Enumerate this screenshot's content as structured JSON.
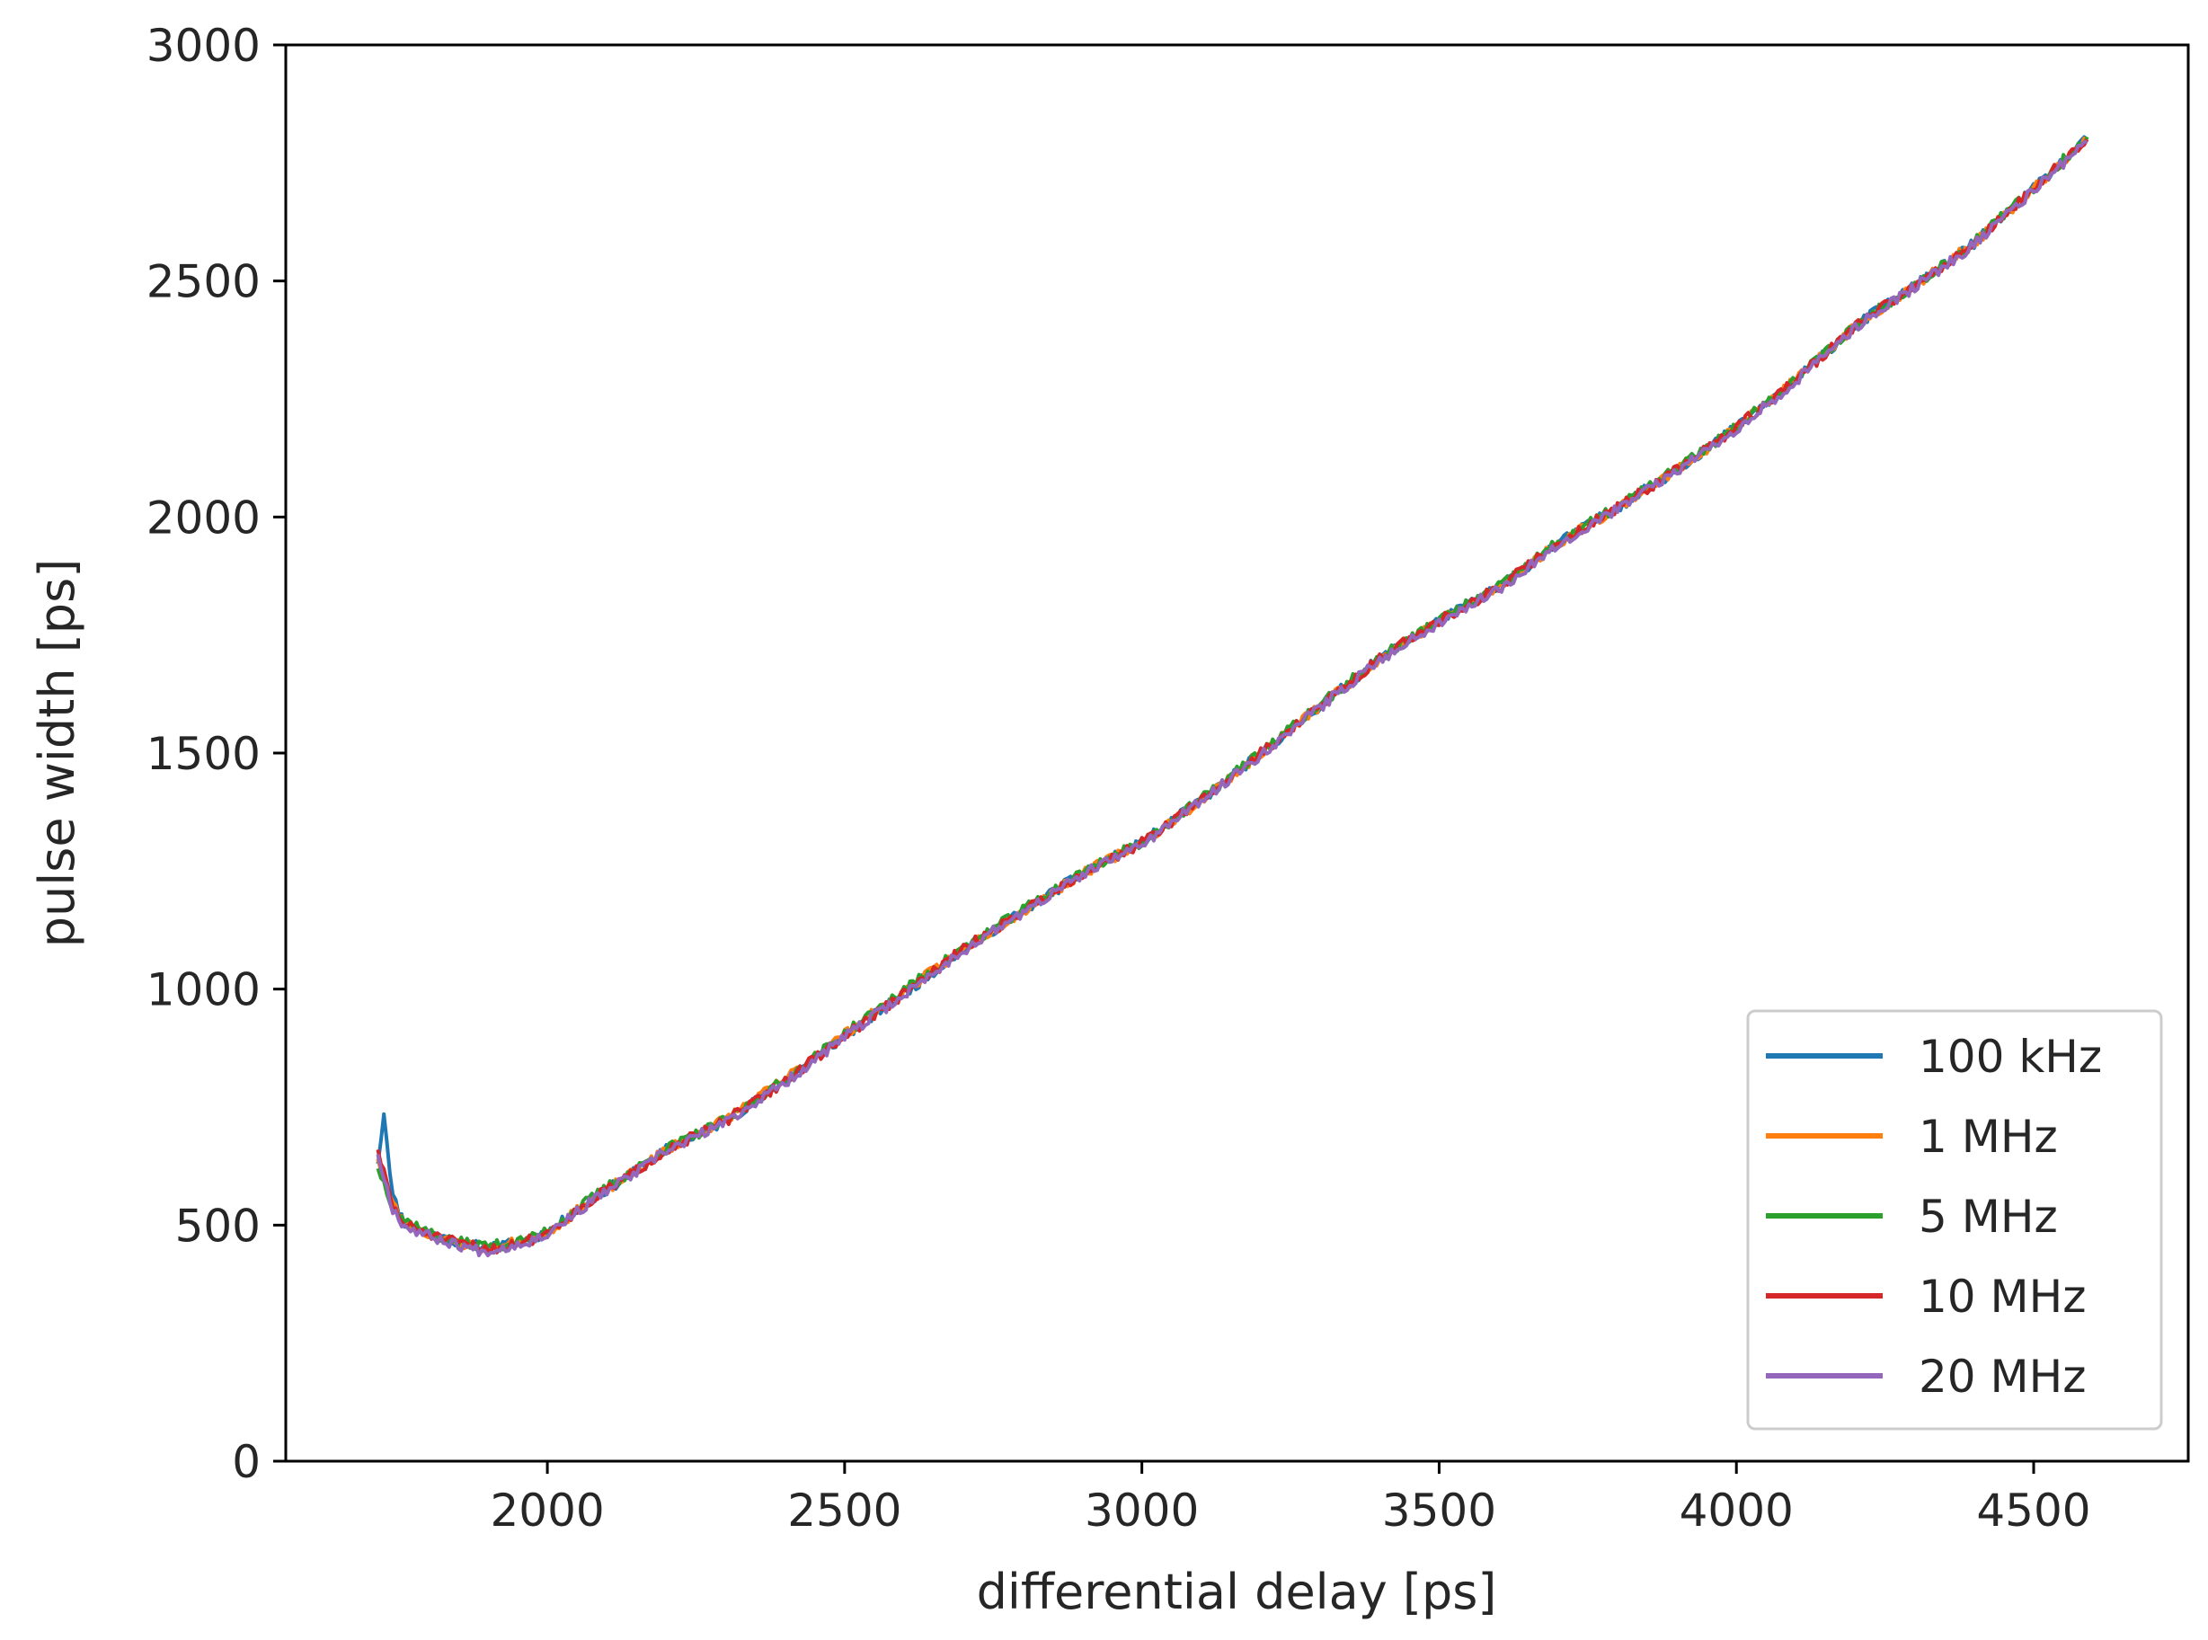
{
  "chart_data": {
    "type": "line",
    "title": "",
    "xlabel": "differential delay [ps]",
    "ylabel": "pulse width [ps]",
    "xlim": [
      1560,
      4760
    ],
    "ylim": [
      0,
      3000
    ],
    "x_ticks": [
      2000,
      2500,
      3000,
      3500,
      4000,
      4500
    ],
    "y_ticks": [
      0,
      500,
      1000,
      1500,
      2000,
      2500,
      3000
    ],
    "x_tick_labels": [
      "2000",
      "2500",
      "3000",
      "3500",
      "4000",
      "4500"
    ],
    "y_tick_labels": [
      "0",
      "500",
      "1000",
      "1500",
      "2000",
      "2500",
      "3000"
    ],
    "grid": false,
    "legend_position": "lower-right",
    "x": [
      1715,
      1725,
      1740,
      1760,
      1780,
      1800,
      1830,
      1860,
      1890,
      1920,
      1950,
      1980,
      2000,
      2050,
      2100,
      2150,
      2200,
      2300,
      2400,
      2500,
      2600,
      2700,
      2800,
      2900,
      3000,
      3100,
      3200,
      3300,
      3400,
      3500,
      3600,
      3700,
      3800,
      3900,
      4000,
      4100,
      4200,
      4300,
      4400,
      4500,
      4590
    ],
    "series": [
      {
        "name": "100 kHz",
        "color": "#1f77b4",
        "seed": 11,
        "values": [
          630,
          740,
          560,
          505,
          495,
          485,
          470,
          460,
          455,
          455,
          465,
          475,
          485,
          530,
          575,
          615,
          660,
          720,
          805,
          900,
          990,
          1085,
          1165,
          1245,
          1310,
          1400,
          1500,
          1600,
          1700,
          1780,
          1850,
          1945,
          2020,
          2100,
          2190,
          2290,
          2405,
          2490,
          2580,
          2695,
          2800
        ]
      },
      {
        "name": "1 MHz",
        "color": "#ff7f0e",
        "seed": 23,
        "values": [
          640,
          600,
          545,
          505,
          490,
          480,
          468,
          460,
          452,
          455,
          465,
          475,
          485,
          530,
          575,
          615,
          660,
          725,
          810,
          905,
          995,
          1085,
          1165,
          1245,
          1310,
          1400,
          1500,
          1600,
          1700,
          1780,
          1850,
          1945,
          2020,
          2100,
          2190,
          2290,
          2405,
          2490,
          2580,
          2695,
          2800
        ]
      },
      {
        "name": "5 MHz",
        "color": "#2ca02c",
        "seed": 37,
        "values": [
          620,
          590,
          540,
          510,
          500,
          485,
          470,
          462,
          458,
          458,
          465,
          475,
          490,
          535,
          580,
          620,
          662,
          722,
          808,
          905,
          998,
          1088,
          1168,
          1248,
          1312,
          1402,
          1502,
          1602,
          1702,
          1782,
          1852,
          1947,
          2022,
          2102,
          2192,
          2292,
          2407,
          2492,
          2582,
          2697,
          2805
        ]
      },
      {
        "name": "10 MHz",
        "color": "#d62728",
        "seed": 51,
        "values": [
          660,
          610,
          540,
          500,
          492,
          482,
          468,
          460,
          452,
          452,
          462,
          472,
          485,
          530,
          575,
          615,
          660,
          720,
          805,
          900,
          990,
          1085,
          1165,
          1245,
          1310,
          1400,
          1500,
          1600,
          1700,
          1780,
          1850,
          1945,
          2020,
          2100,
          2190,
          2290,
          2405,
          2490,
          2580,
          2695,
          2800
        ]
      },
      {
        "name": "20 MHz",
        "color": "#9467bd",
        "seed": 67,
        "values": [
          650,
          600,
          535,
          498,
          488,
          478,
          465,
          455,
          445,
          450,
          460,
          470,
          483,
          528,
          573,
          612,
          657,
          718,
          802,
          898,
          988,
          1082,
          1162,
          1242,
          1307,
          1398,
          1497,
          1597,
          1697,
          1777,
          1847,
          1942,
          2017,
          2097,
          2187,
          2287,
          2402,
          2487,
          2577,
          2692,
          2795
        ]
      }
    ]
  }
}
